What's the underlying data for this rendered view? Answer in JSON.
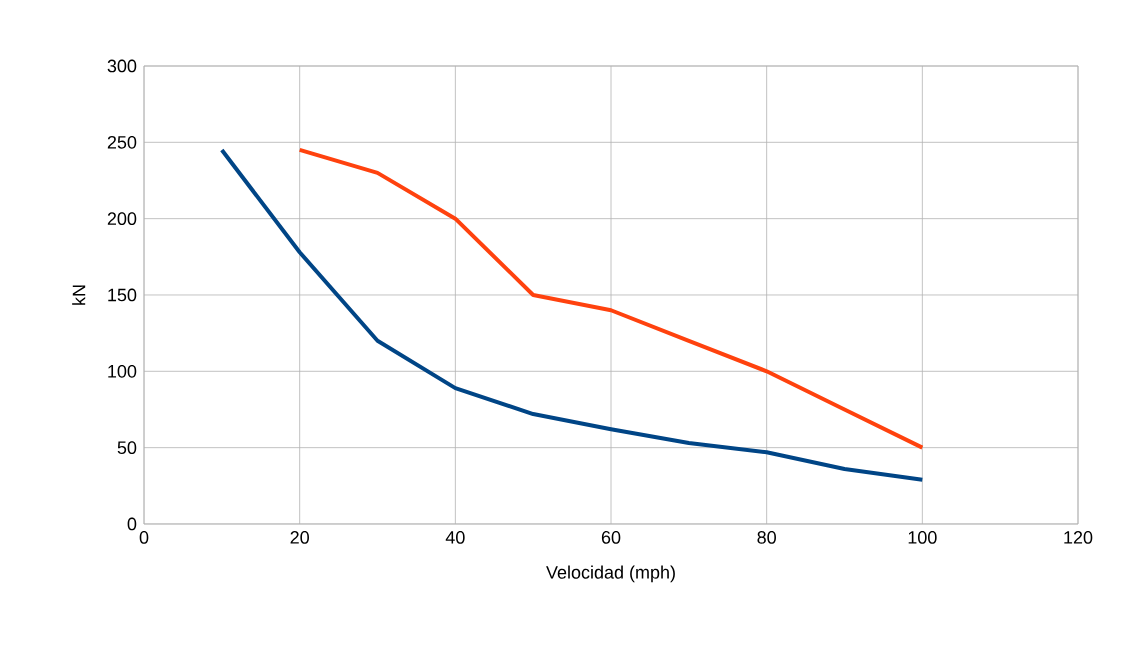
{
  "chart_data": {
    "type": "line",
    "xlabel": "Velocidad (mph)",
    "ylabel": "kN",
    "series": [
      {
        "color": "#004586",
        "x": [
          10,
          20,
          30,
          40,
          50,
          60,
          70,
          80,
          90,
          100
        ],
        "values": [
          245,
          178,
          120,
          89,
          72,
          62,
          53,
          47,
          36,
          29
        ]
      },
      {
        "color": "#ff420e",
        "x": [
          20,
          30,
          40,
          50,
          60,
          70,
          80,
          90,
          100
        ],
        "values": [
          245,
          230,
          200,
          150,
          140,
          120,
          100,
          75,
          50
        ]
      }
    ],
    "xlim": [
      0,
      120
    ],
    "xticks": [
      0,
      20,
      40,
      60,
      80,
      100,
      120
    ],
    "ylim": [
      0,
      300
    ],
    "yticks": [
      0,
      50,
      100,
      150,
      200,
      250,
      300
    ],
    "grid": true,
    "marker": "none",
    "line_style": "solid"
  }
}
